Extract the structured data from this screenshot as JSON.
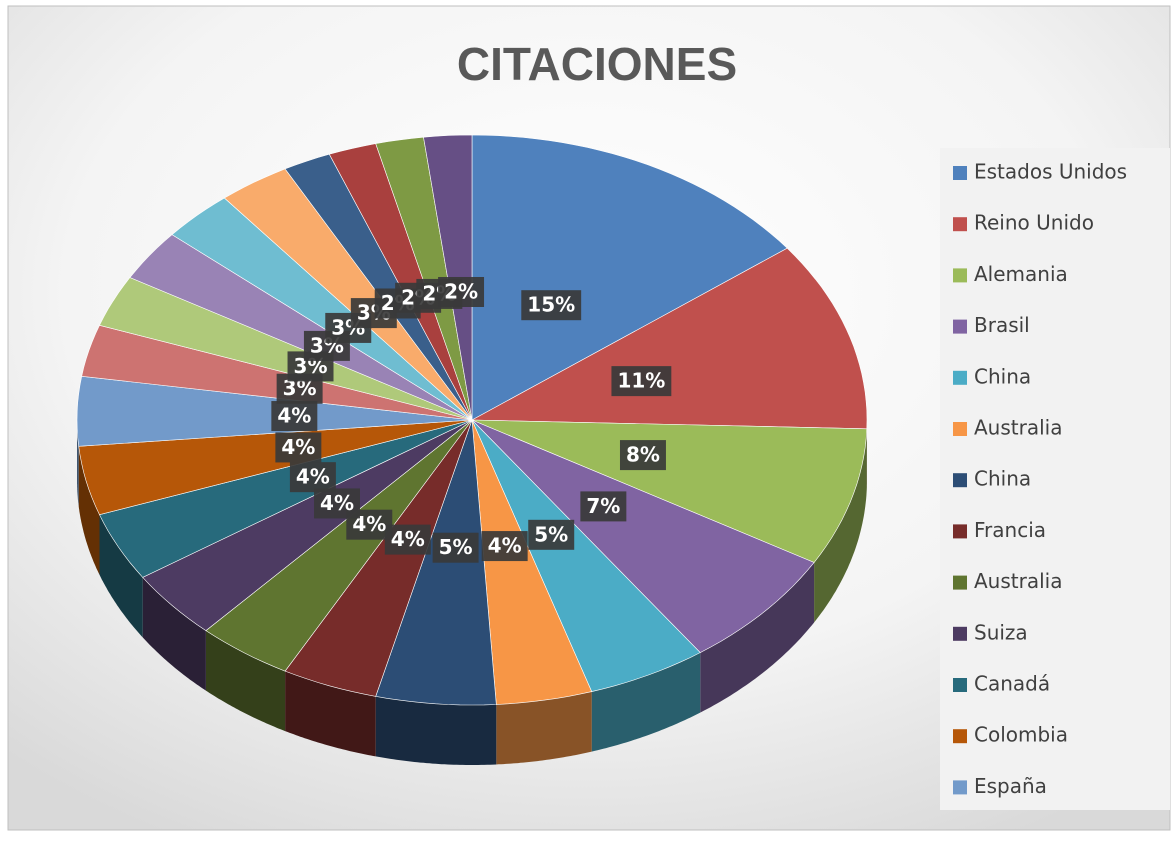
{
  "chart_data": {
    "type": "pie3d",
    "title": "CITACIONES",
    "categories": [
      "Estados Unidos",
      "Reino Unido",
      "Alemania",
      "Brasil",
      "China",
      "Australia",
      "China",
      "Francia",
      "Australia",
      "Suiza",
      "Canadá",
      "Colombia",
      "España",
      null,
      null,
      null,
      null,
      null,
      null,
      null,
      null,
      null
    ],
    "values": [
      15,
      11,
      8,
      7,
      5,
      4,
      5,
      4,
      4,
      4,
      4,
      4,
      4,
      3,
      3,
      3,
      3,
      3,
      2,
      2,
      2,
      2
    ],
    "value_labels": [
      "15%",
      "11%",
      "8%",
      "7%",
      "5%",
      "4%",
      "5%",
      "4%",
      "4%",
      "4%",
      "4%",
      "4%",
      "4%",
      "3%",
      "3%",
      "3%",
      "3%",
      "3%",
      "2%",
      "2%",
      "2%",
      "2%"
    ],
    "colors": [
      "#4F81BD",
      "#C0504D",
      "#9BBB59",
      "#8064A2",
      "#4BACC6",
      "#F79646",
      "#2C4D75",
      "#772C2A",
      "#5F7530",
      "#4D3B62",
      "#276A7C",
      "#B65708",
      "#729ACA",
      "#CD7371",
      "#AFC97A",
      "#9983B5",
      "#6FBDD1",
      "#F9AB6B",
      "#3A5F8B",
      "#A9403E",
      "#7E9A44",
      "#664F85"
    ],
    "legend": "right"
  }
}
